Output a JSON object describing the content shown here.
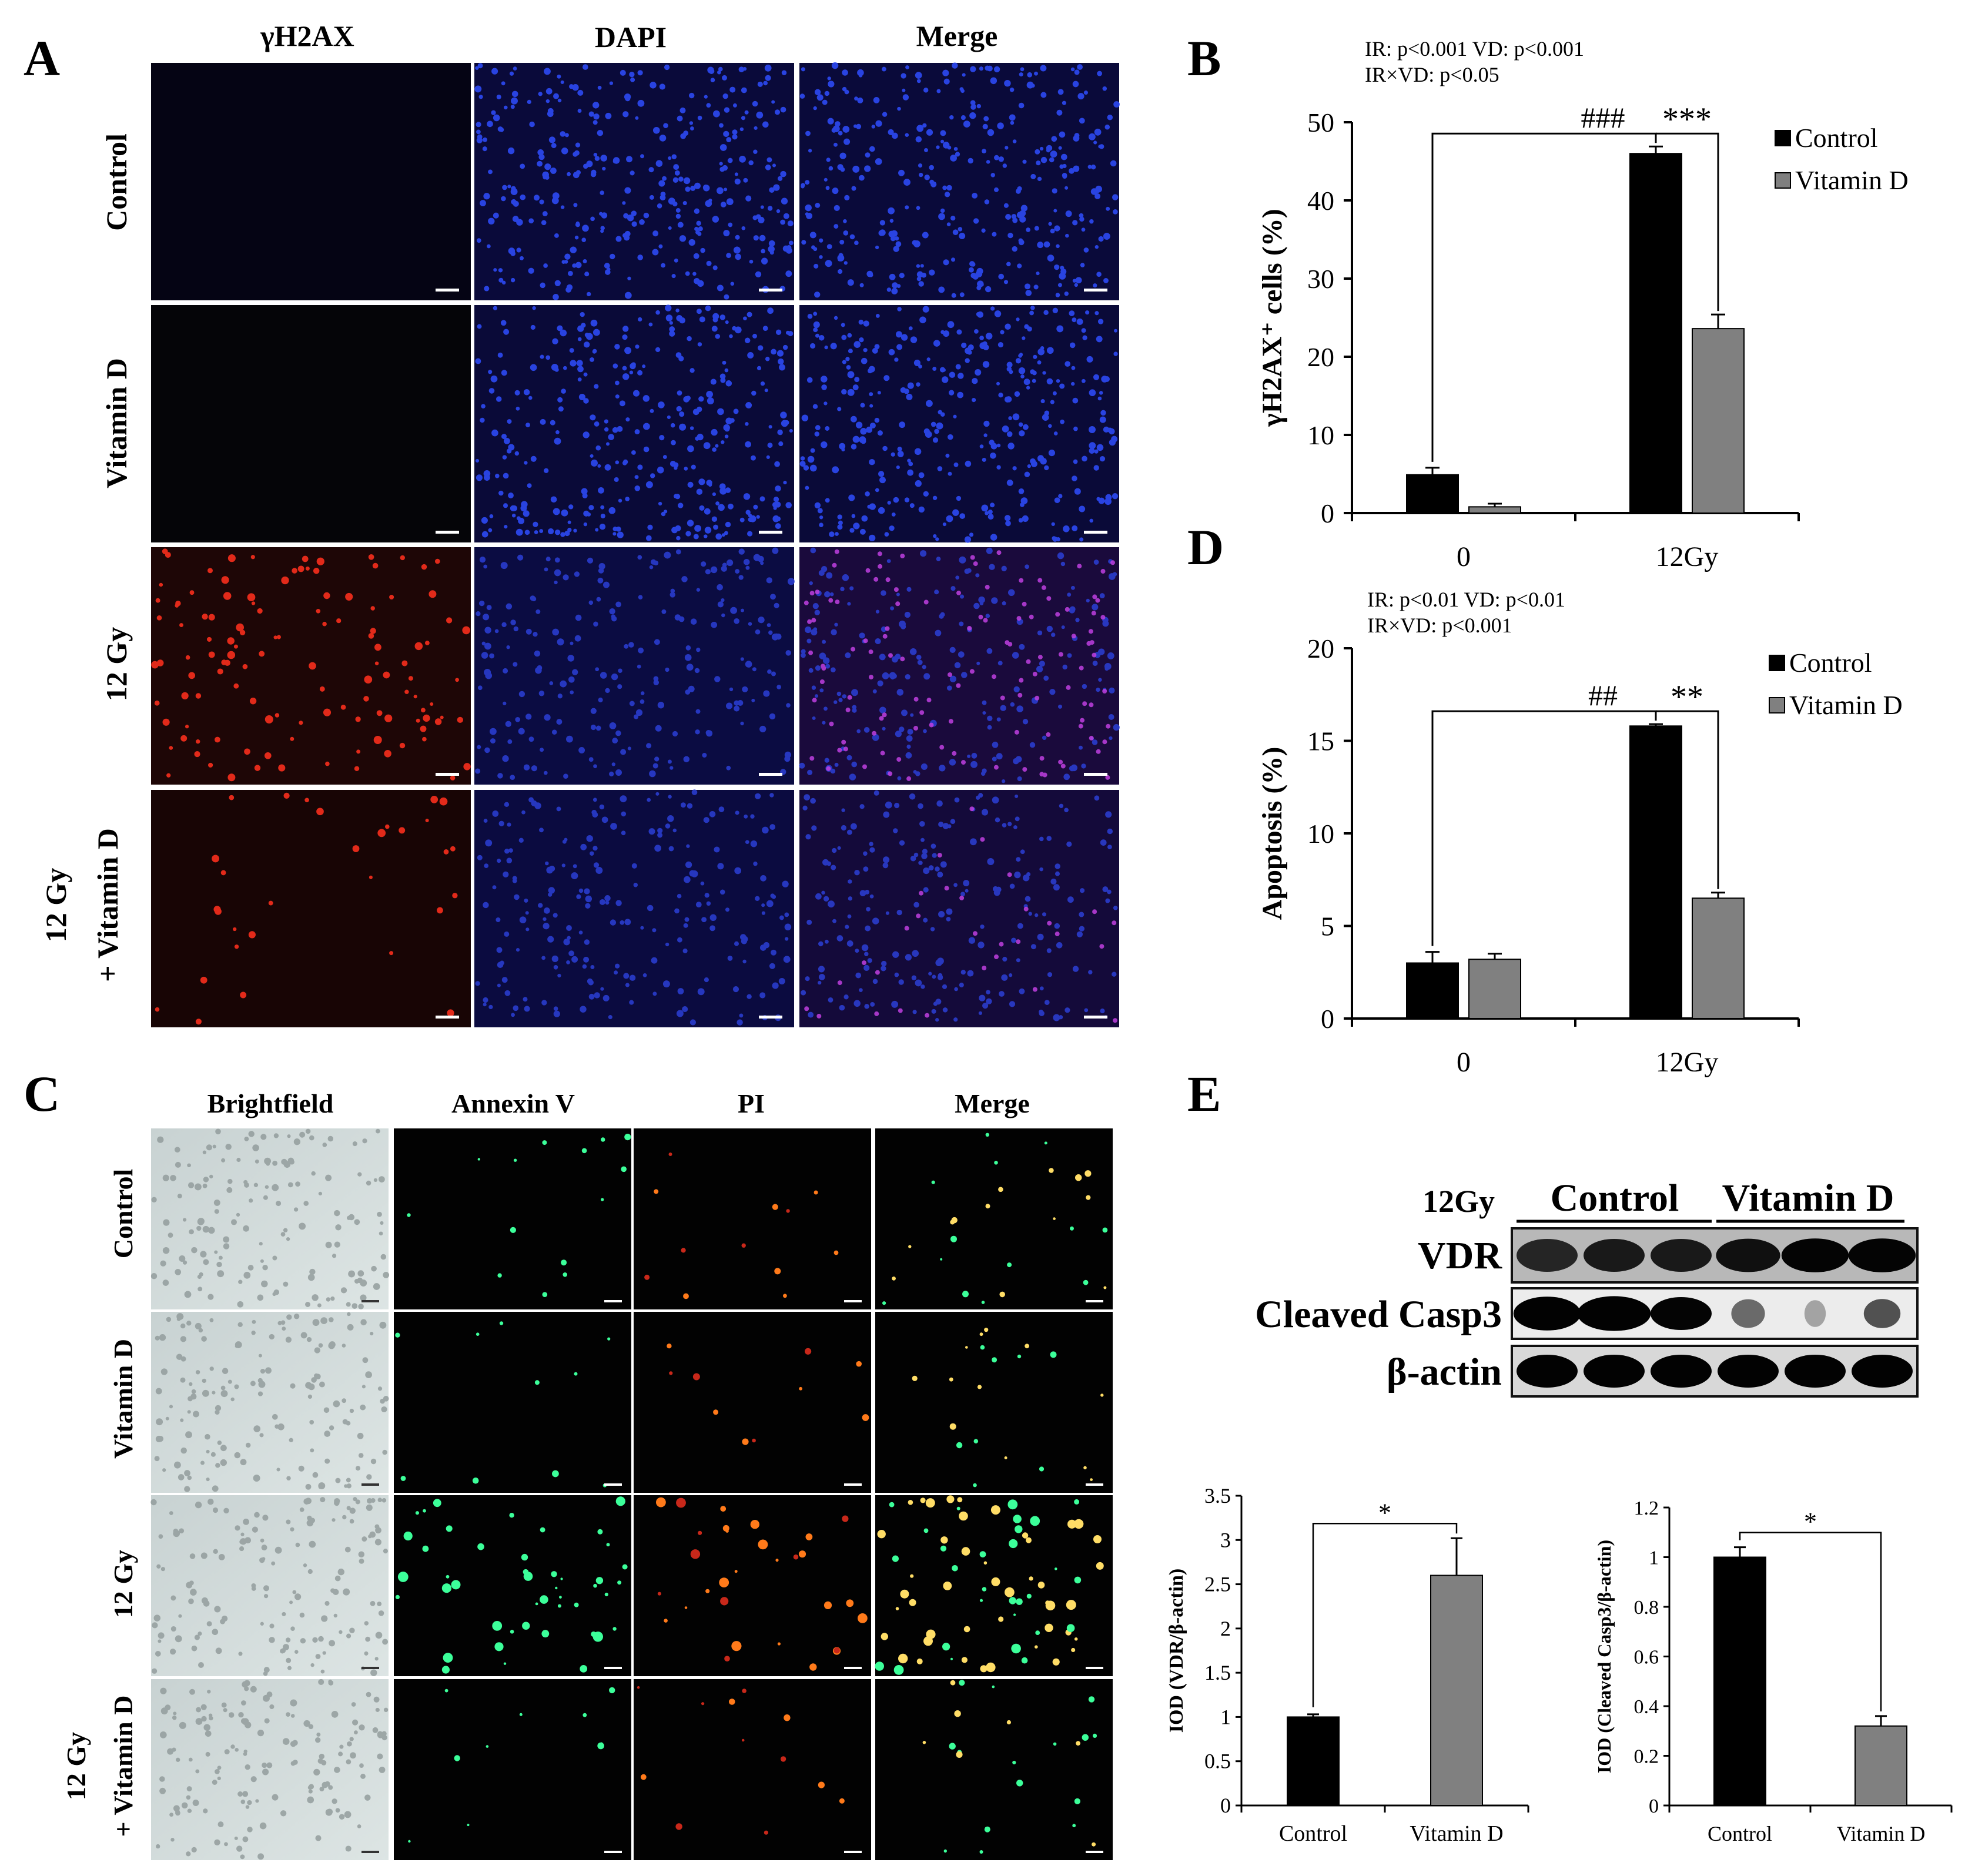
{
  "panels": {
    "A": {
      "letter": "A",
      "columns": [
        "γH2AX",
        "DAPI",
        "Merge"
      ],
      "rows": [
        "Control",
        "Vitamin D",
        "12 Gy",
        "12 Gy",
        "+ Vitamin D"
      ]
    },
    "C": {
      "letter": "C",
      "columns": [
        "Brightfield",
        "Annexin V",
        "PI",
        "Merge"
      ],
      "rows": [
        "Control",
        "Vitamin D",
        "12 Gy",
        "12 Gy",
        "+ Vitamin D"
      ]
    },
    "E": {
      "letter": "E",
      "blot_header": "12Gy",
      "groups": [
        "Control",
        "Vitamin D"
      ],
      "bands": [
        "VDR",
        "Cleaved Casp3",
        "β-actin"
      ]
    }
  },
  "chart_data": [
    {
      "id": "B",
      "type": "bar",
      "categories": [
        "0",
        "12Gy"
      ],
      "series": [
        {
          "name": "Control",
          "values": [
            4.9,
            46.0
          ],
          "errors": [
            0.9,
            0.9
          ],
          "color": "#000000"
        },
        {
          "name": "Vitamin D",
          "values": [
            0.8,
            23.6
          ],
          "errors": [
            0.4,
            1.8
          ],
          "color": "#808080"
        }
      ],
      "ylabel": "γH2AX⁺ cells (%)",
      "ylim": [
        0,
        50
      ],
      "yticks": [
        0,
        10,
        20,
        30,
        40,
        50
      ],
      "stats_line1": "IR: p<0.001 VD: p<0.001",
      "stats_line2": "IR×VD: p<0.05",
      "sig_hash": "###",
      "sig_star": "***",
      "legend": [
        "Control",
        "Vitamin D"
      ],
      "legend_position": "top-right"
    },
    {
      "id": "D",
      "type": "bar",
      "categories": [
        "0",
        "12Gy"
      ],
      "series": [
        {
          "name": "Control",
          "values": [
            3.0,
            15.8
          ],
          "errors": [
            0.6,
            0.1
          ],
          "color": "#000000"
        },
        {
          "name": "Vitamin D",
          "values": [
            3.2,
            6.5
          ],
          "errors": [
            0.3,
            0.3
          ],
          "color": "#808080"
        }
      ],
      "ylabel": "Apoptosis (%)",
      "ylim": [
        0,
        20
      ],
      "yticks": [
        0,
        5,
        10,
        15,
        20
      ],
      "stats_line1": "IR: p<0.01  VD: p<0.01",
      "stats_line2": "IR×VD: p<0.001",
      "sig_hash": "##",
      "sig_star": "**",
      "legend": [
        "Control",
        "Vitamin D"
      ],
      "legend_position": "top-right"
    },
    {
      "id": "E1",
      "type": "bar",
      "categories": [
        "Control",
        "Vitamin D"
      ],
      "values": [
        1.0,
        2.6
      ],
      "errors": [
        0.03,
        0.42
      ],
      "colors": [
        "#000000",
        "#808080"
      ],
      "ylabel": "IOD (VDR/β-actin)",
      "ylim": [
        0,
        3.5
      ],
      "yticks": [
        "0",
        "0.5",
        "1",
        "1.5",
        "2",
        "2.5",
        "3",
        "3.5"
      ],
      "sig": "*"
    },
    {
      "id": "E2",
      "type": "bar",
      "categories": [
        "Control",
        "Vitamin D"
      ],
      "values": [
        1.0,
        0.32
      ],
      "errors": [
        0.04,
        0.04
      ],
      "colors": [
        "#000000",
        "#808080"
      ],
      "ylabel": "IOD (Cleaved Casp3/β-actin)",
      "ylim": [
        0,
        1.2
      ],
      "yticks": [
        "0",
        "0.2",
        "0.4",
        "0.6",
        "0.8",
        "1",
        "1.2"
      ],
      "sig": "*"
    }
  ]
}
